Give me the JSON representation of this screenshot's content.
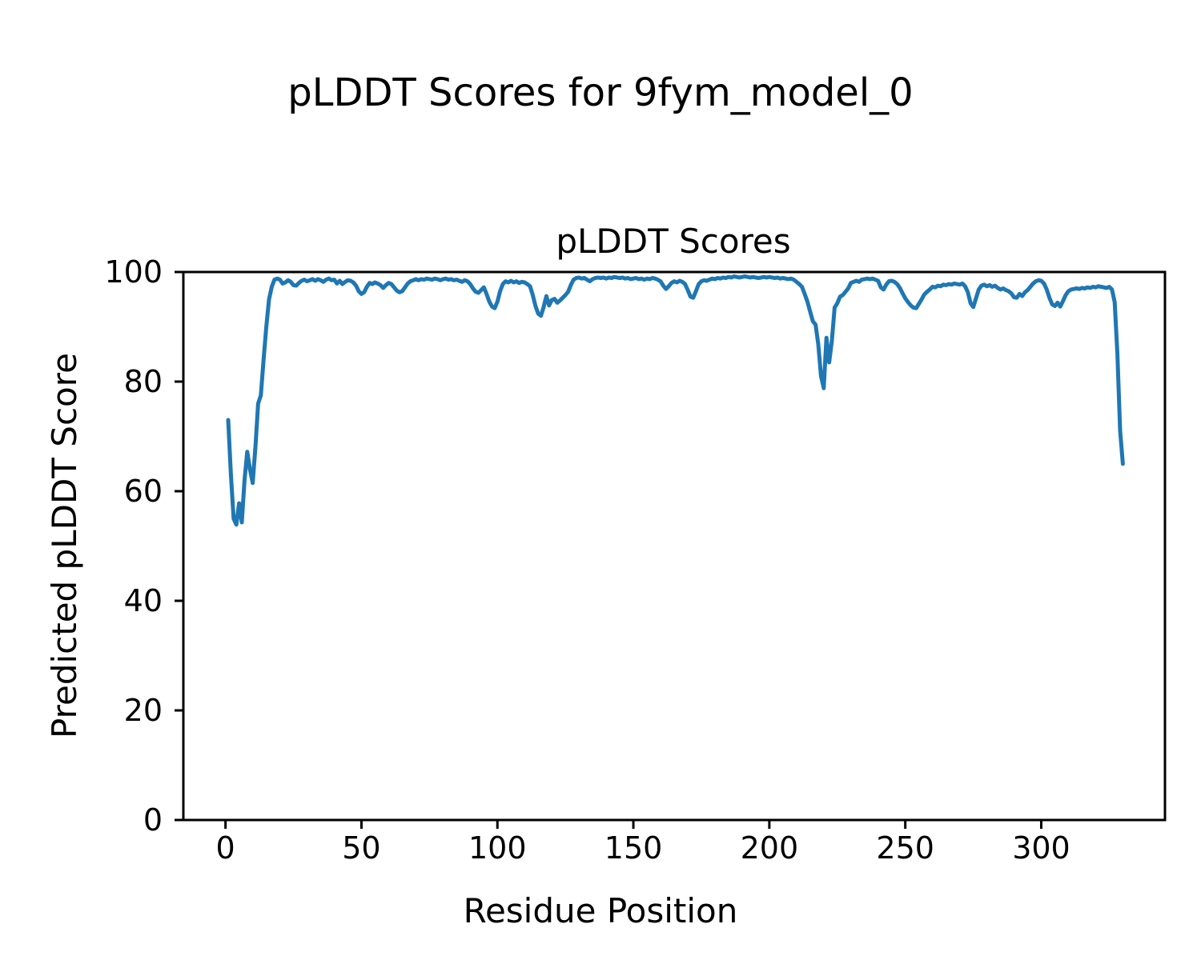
{
  "figure": {
    "suptitle": "pLDDT Scores for 9fym_model_0",
    "axes_title": "pLDDT Scores",
    "xlabel": "Residue Position",
    "ylabel": "Predicted pLDDT Score"
  },
  "chart_data": {
    "type": "line",
    "title": "pLDDT Scores",
    "suptitle": "pLDDT Scores for 9fym_model_0",
    "xlabel": "Residue Position",
    "ylabel": "Predicted pLDDT Score",
    "xlim": [
      -15.5,
      345.5
    ],
    "ylim": [
      0,
      100
    ],
    "xticks": [
      0,
      50,
      100,
      150,
      200,
      250,
      300
    ],
    "yticks": [
      0,
      20,
      40,
      60,
      80,
      100
    ],
    "grid": false,
    "legend": null,
    "line_color": "#1f77b4",
    "spine_color": "#000000",
    "series": [
      {
        "name": "pLDDT",
        "x": {
          "start": 1,
          "step": 1,
          "count": 330
        },
        "y": [
          73.0,
          63.0,
          55.0,
          53.9,
          57.8,
          54.3,
          62.0,
          67.2,
          64.0,
          61.5,
          68.0,
          76.0,
          77.5,
          84.0,
          90.0,
          95.0,
          97.3,
          98.6,
          98.8,
          98.6,
          97.9,
          98.1,
          98.5,
          98.2,
          97.6,
          97.5,
          98.0,
          98.4,
          98.6,
          98.3,
          98.5,
          98.7,
          98.4,
          98.7,
          98.5,
          98.2,
          98.6,
          98.8,
          98.5,
          98.6,
          97.9,
          98.4,
          97.8,
          98.2,
          98.5,
          98.4,
          98.1,
          97.5,
          96.5,
          96.0,
          96.3,
          97.3,
          98.0,
          97.8,
          98.1,
          97.9,
          97.6,
          97.1,
          97.6,
          98.0,
          97.8,
          97.2,
          96.6,
          96.3,
          96.5,
          97.2,
          97.9,
          98.3,
          98.5,
          98.7,
          98.5,
          98.7,
          98.6,
          98.8,
          98.7,
          98.6,
          98.8,
          98.7,
          98.5,
          98.7,
          98.8,
          98.6,
          98.7,
          98.5,
          98.6,
          98.4,
          98.2,
          98.5,
          98.3,
          97.8,
          97.0,
          96.4,
          96.2,
          96.7,
          97.2,
          96.0,
          94.6,
          93.7,
          93.4,
          94.6,
          96.5,
          97.8,
          98.3,
          98.1,
          98.4,
          98.1,
          98.3,
          98.0,
          98.2,
          98.1,
          97.8,
          97.4,
          95.8,
          93.8,
          92.4,
          92.0,
          93.6,
          95.6,
          93.9,
          94.9,
          95.1,
          94.4,
          94.8,
          95.3,
          95.8,
          96.4,
          97.6,
          98.6,
          98.9,
          99.0,
          98.8,
          98.9,
          98.6,
          98.3,
          98.7,
          98.9,
          99.0,
          98.9,
          99.0,
          98.8,
          99.0,
          98.9,
          99.1,
          99.0,
          98.9,
          99.0,
          98.8,
          98.9,
          98.7,
          98.8,
          98.9,
          98.7,
          98.8,
          98.6,
          98.8,
          98.7,
          98.9,
          98.8,
          98.6,
          98.3,
          97.5,
          96.9,
          97.4,
          98.0,
          98.3,
          98.1,
          98.4,
          98.2,
          97.8,
          96.7,
          95.5,
          95.3,
          96.5,
          97.8,
          98.3,
          98.5,
          98.4,
          98.6,
          98.8,
          98.7,
          98.9,
          98.8,
          99.0,
          98.9,
          99.1,
          99.0,
          99.2,
          99.1,
          99.0,
          99.1,
          99.2,
          99.1,
          99.0,
          99.1,
          99.0,
          98.9,
          99.0,
          99.1,
          99.0,
          99.1,
          99.0,
          98.9,
          99.0,
          98.8,
          98.9,
          98.8,
          98.7,
          98.8,
          98.6,
          98.2,
          97.8,
          97.3,
          96.0,
          94.6,
          92.8,
          91.0,
          90.4,
          86.8,
          81.0,
          78.8,
          88.0,
          83.5,
          87.5,
          93.5,
          94.3,
          95.5,
          95.8,
          96.4,
          97.0,
          98.0,
          98.2,
          98.4,
          98.2,
          98.6,
          98.7,
          98.8,
          98.7,
          98.8,
          98.6,
          98.4,
          97.2,
          96.8,
          97.7,
          98.3,
          98.4,
          98.2,
          97.8,
          97.1,
          96.1,
          95.2,
          94.5,
          93.9,
          93.5,
          93.4,
          94.2,
          95.0,
          95.9,
          96.4,
          96.8,
          97.3,
          97.2,
          97.5,
          97.4,
          97.7,
          97.6,
          97.8,
          97.7,
          97.9,
          97.8,
          97.7,
          97.9,
          97.4,
          96.3,
          94.3,
          93.6,
          95.2,
          96.8,
          97.5,
          97.7,
          97.4,
          97.6,
          97.3,
          97.5,
          97.1,
          96.8,
          97.0,
          96.7,
          96.5,
          96.1,
          95.4,
          95.3,
          96.0,
          95.6,
          96.3,
          96.7,
          97.3,
          97.9,
          98.3,
          98.5,
          98.4,
          97.9,
          96.8,
          95.3,
          94.1,
          93.8,
          94.4,
          93.7,
          94.7,
          95.8,
          96.5,
          96.8,
          96.9,
          97.0,
          96.9,
          97.1,
          97.0,
          97.2,
          97.1,
          97.3,
          97.2,
          97.4,
          97.3,
          97.2,
          97.1,
          97.3,
          96.8,
          94.5,
          85.0,
          71.0,
          65.0
        ]
      }
    ]
  }
}
